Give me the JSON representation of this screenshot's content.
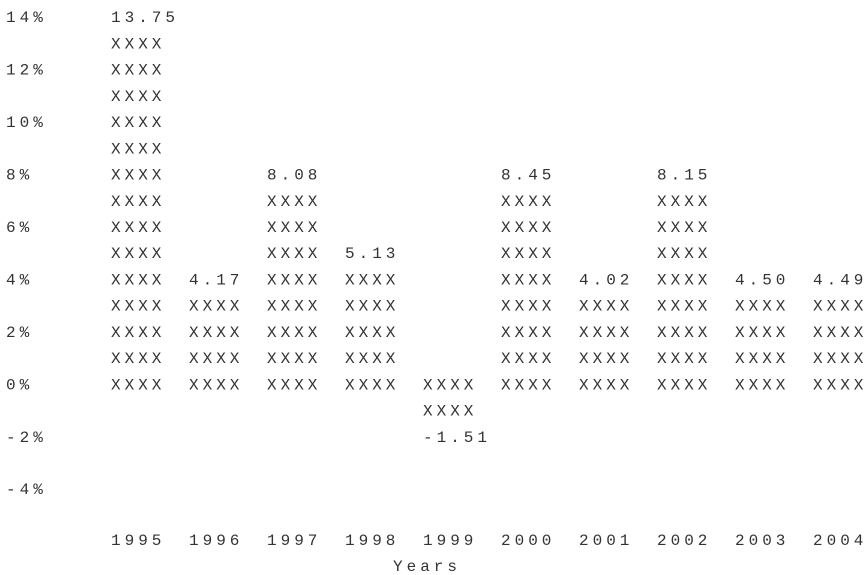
{
  "chart_data": {
    "type": "ascii-bar",
    "xlabel": "Years",
    "bar_glyph": "XXXX",
    "categories": [
      "1995",
      "1996",
      "1997",
      "1998",
      "1999",
      "2000",
      "2001",
      "2002",
      "2003",
      "2004"
    ],
    "values": [
      13.75,
      4.17,
      8.08,
      5.13,
      -1.51,
      8.45,
      4.02,
      8.15,
      4.5,
      4.49
    ],
    "value_labels": [
      "13.75",
      "4.17",
      "8.08",
      "5.13",
      "-1.51",
      "8.45",
      "4.02",
      "8.15",
      "4.50",
      "4.49"
    ],
    "ylim": [
      -4,
      14
    ],
    "yticks": [
      {
        "value": 14,
        "label": "14%"
      },
      {
        "value": 12,
        "label": "12%"
      },
      {
        "value": 10,
        "label": "10%"
      },
      {
        "value": 8,
        "label": "8%"
      },
      {
        "value": 6,
        "label": "6%"
      },
      {
        "value": 4,
        "label": "4%"
      },
      {
        "value": 2,
        "label": "2%"
      },
      {
        "value": 0,
        "label": "0%"
      },
      {
        "value": -2,
        "label": "-2%"
      },
      {
        "value": -4,
        "label": "-4%"
      }
    ],
    "color": "#333333"
  }
}
